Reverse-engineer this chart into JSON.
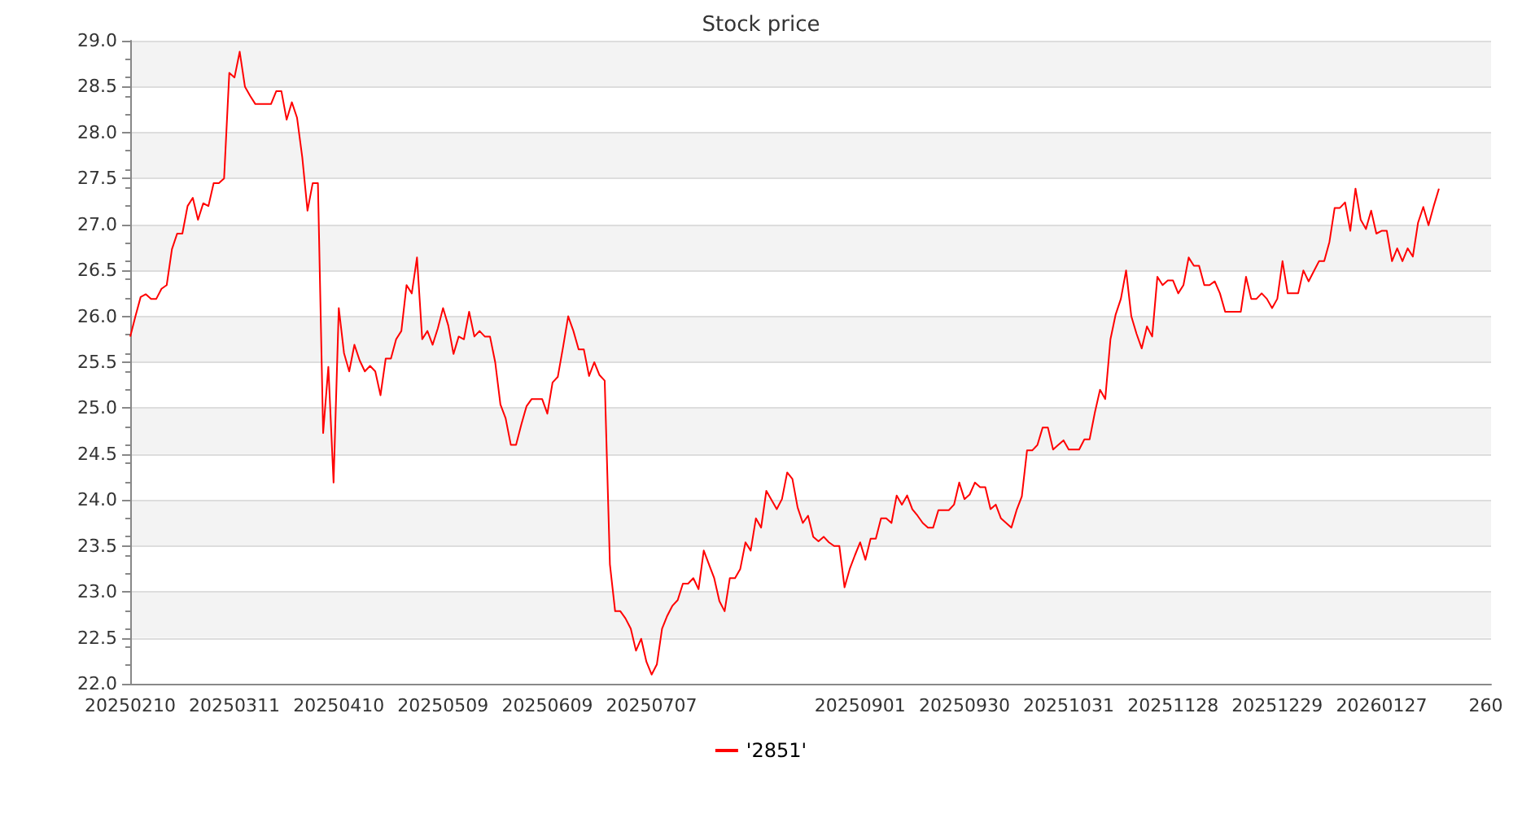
{
  "chart_data": {
    "type": "line",
    "title": "Stock price",
    "categories": [
      "20250210",
      null,
      null,
      null,
      null,
      null,
      null,
      null,
      null,
      null,
      null,
      null,
      null,
      null,
      null,
      null,
      null,
      null,
      null,
      null,
      "20250311",
      null,
      null,
      null,
      null,
      null,
      null,
      null,
      null,
      null,
      null,
      null,
      null,
      null,
      null,
      null,
      null,
      null,
      null,
      null,
      "20250410",
      null,
      null,
      null,
      null,
      null,
      null,
      null,
      null,
      null,
      null,
      null,
      null,
      null,
      null,
      null,
      null,
      null,
      null,
      null,
      "20250509",
      null,
      null,
      null,
      null,
      null,
      null,
      null,
      null,
      null,
      null,
      null,
      null,
      null,
      null,
      null,
      null,
      null,
      null,
      null,
      "20250609",
      null,
      null,
      null,
      null,
      null,
      null,
      null,
      null,
      null,
      null,
      null,
      null,
      null,
      null,
      null,
      null,
      null,
      null,
      null,
      "20250707",
      null,
      null,
      null,
      null,
      null,
      null,
      null,
      null,
      null,
      null,
      null,
      null,
      null,
      null,
      null,
      null,
      null,
      null,
      null,
      null,
      null,
      null,
      null,
      null,
      null,
      null,
      null,
      null,
      null,
      null,
      null,
      null,
      null,
      null,
      null,
      null,
      null,
      null,
      null,
      "20250901",
      null,
      null,
      null,
      null,
      null,
      null,
      null,
      null,
      null,
      null,
      null,
      null,
      null,
      null,
      null,
      null,
      null,
      null,
      null,
      "20250930",
      null,
      null,
      null,
      null,
      null,
      null,
      null,
      null,
      null,
      null,
      null,
      null,
      null,
      null,
      null,
      null,
      null,
      null,
      null,
      "20251031",
      null,
      null,
      null,
      null,
      null,
      null,
      null,
      null,
      null,
      null,
      null,
      null,
      null,
      null,
      null,
      null,
      null,
      null,
      null,
      "20251128",
      null,
      null,
      null,
      null,
      null,
      null,
      null,
      null,
      null,
      null,
      null,
      null,
      null,
      null,
      null,
      null,
      null,
      null,
      null,
      "20251229",
      null,
      null,
      null,
      null,
      null,
      null,
      null,
      null,
      null,
      null,
      null,
      null,
      null,
      null,
      null,
      null,
      null,
      null,
      null,
      "20260127",
      null,
      null,
      null,
      null,
      null,
      null,
      null,
      null,
      null,
      null,
      null,
      null,
      null,
      null,
      null,
      null,
      null,
      null,
      null,
      "260",
      null
    ],
    "series": [
      {
        "name": "'2851'",
        "color": "#ff0000",
        "values": [
          25.78,
          26.0,
          26.21,
          26.24,
          26.19,
          26.19,
          26.3,
          26.34,
          26.73,
          26.9,
          26.9,
          27.2,
          27.29,
          27.05,
          27.23,
          27.2,
          27.45,
          27.45,
          27.5,
          28.65,
          28.6,
          28.88,
          28.5,
          28.4,
          28.31,
          28.31,
          28.31,
          28.31,
          28.45,
          28.45,
          28.14,
          28.33,
          28.16,
          27.73,
          27.15,
          27.45,
          27.45,
          24.73,
          25.45,
          24.19,
          26.09,
          25.6,
          25.4,
          25.69,
          25.52,
          25.4,
          25.46,
          25.4,
          25.14,
          25.54,
          25.54,
          25.75,
          25.84,
          26.34,
          26.25,
          26.64,
          25.75,
          25.84,
          25.69,
          25.87,
          26.09,
          25.9,
          25.59,
          25.78,
          25.75,
          26.05,
          25.78,
          25.84,
          25.78,
          25.78,
          25.5,
          25.04,
          24.89,
          24.6,
          24.6,
          24.82,
          25.02,
          25.1,
          25.1,
          25.1,
          24.94,
          25.28,
          25.34,
          25.66,
          26.0,
          25.84,
          25.64,
          25.64,
          25.35,
          25.5,
          25.36,
          25.3,
          23.3,
          22.79,
          22.79,
          22.71,
          22.6,
          22.36,
          22.49,
          22.24,
          22.1,
          22.21,
          22.6,
          22.74,
          22.85,
          22.91,
          23.09,
          23.09,
          23.15,
          23.03,
          23.45,
          23.3,
          23.15,
          22.9,
          22.79,
          23.15,
          23.15,
          23.25,
          23.54,
          23.45,
          23.8,
          23.7,
          24.1,
          24.0,
          23.9,
          24.01,
          24.3,
          24.23,
          23.92,
          23.75,
          23.83,
          23.6,
          23.55,
          23.6,
          23.54,
          23.5,
          23.5,
          23.05,
          23.25,
          23.4,
          23.54,
          23.35,
          23.58,
          23.58,
          23.8,
          23.8,
          23.75,
          24.05,
          23.95,
          24.05,
          23.9,
          23.83,
          23.75,
          23.7,
          23.7,
          23.89,
          23.89,
          23.89,
          23.95,
          24.19,
          24.01,
          24.06,
          24.19,
          24.14,
          24.14,
          23.9,
          23.95,
          23.8,
          23.75,
          23.7,
          23.89,
          24.04,
          24.54,
          24.54,
          24.6,
          24.79,
          24.79,
          24.55,
          24.6,
          24.65,
          24.55,
          24.55,
          24.55,
          24.66,
          24.66,
          24.95,
          25.2,
          25.1,
          25.75,
          26.02,
          26.19,
          26.5,
          26.0,
          25.81,
          25.65,
          25.89,
          25.78,
          26.43,
          26.34,
          26.39,
          26.39,
          26.25,
          26.34,
          26.64,
          26.55,
          26.55,
          26.34,
          26.34,
          26.38,
          26.25,
          26.05,
          26.05,
          26.05,
          26.05,
          26.43,
          26.19,
          26.19,
          26.25,
          26.19,
          26.09,
          26.19,
          26.6,
          26.25,
          26.25,
          26.25,
          26.5,
          26.38,
          26.49,
          26.6,
          26.6,
          26.81,
          27.18,
          27.18,
          27.24,
          26.93,
          27.39,
          27.05,
          26.95,
          27.15,
          26.9,
          26.93,
          26.93,
          26.6,
          26.74,
          26.6,
          26.74,
          26.65,
          27.02,
          27.19,
          26.99,
          27.2,
          27.39,
          null,
          null,
          null,
          null,
          null,
          null,
          null,
          null,
          null,
          null
        ]
      }
    ],
    "ylim": [
      22.0,
      29.0
    ],
    "yticks": [
      {
        "value": 22,
        "label": "22.0"
      },
      {
        "value": 22.5,
        "label": "22.5"
      },
      {
        "value": 23,
        "label": "23.0"
      },
      {
        "value": 23.5,
        "label": "23.5"
      },
      {
        "value": 24,
        "label": "24.0"
      },
      {
        "value": 24.5,
        "label": "24.5"
      },
      {
        "value": 25,
        "label": "25.0"
      },
      {
        "value": 25.5,
        "label": "25.5"
      },
      {
        "value": 26,
        "label": "26.0"
      },
      {
        "value": 26.5,
        "label": "26.5"
      },
      {
        "value": 27,
        "label": "27.0"
      },
      {
        "value": 27.5,
        "label": "27.5"
      },
      {
        "value": 28,
        "label": "28.0"
      },
      {
        "value": 28.5,
        "label": "28.5"
      },
      {
        "value": 29,
        "label": "29.0"
      }
    ],
    "grid": "y",
    "legend": "bottom",
    "marker": "none",
    "line_style": "solid"
  }
}
